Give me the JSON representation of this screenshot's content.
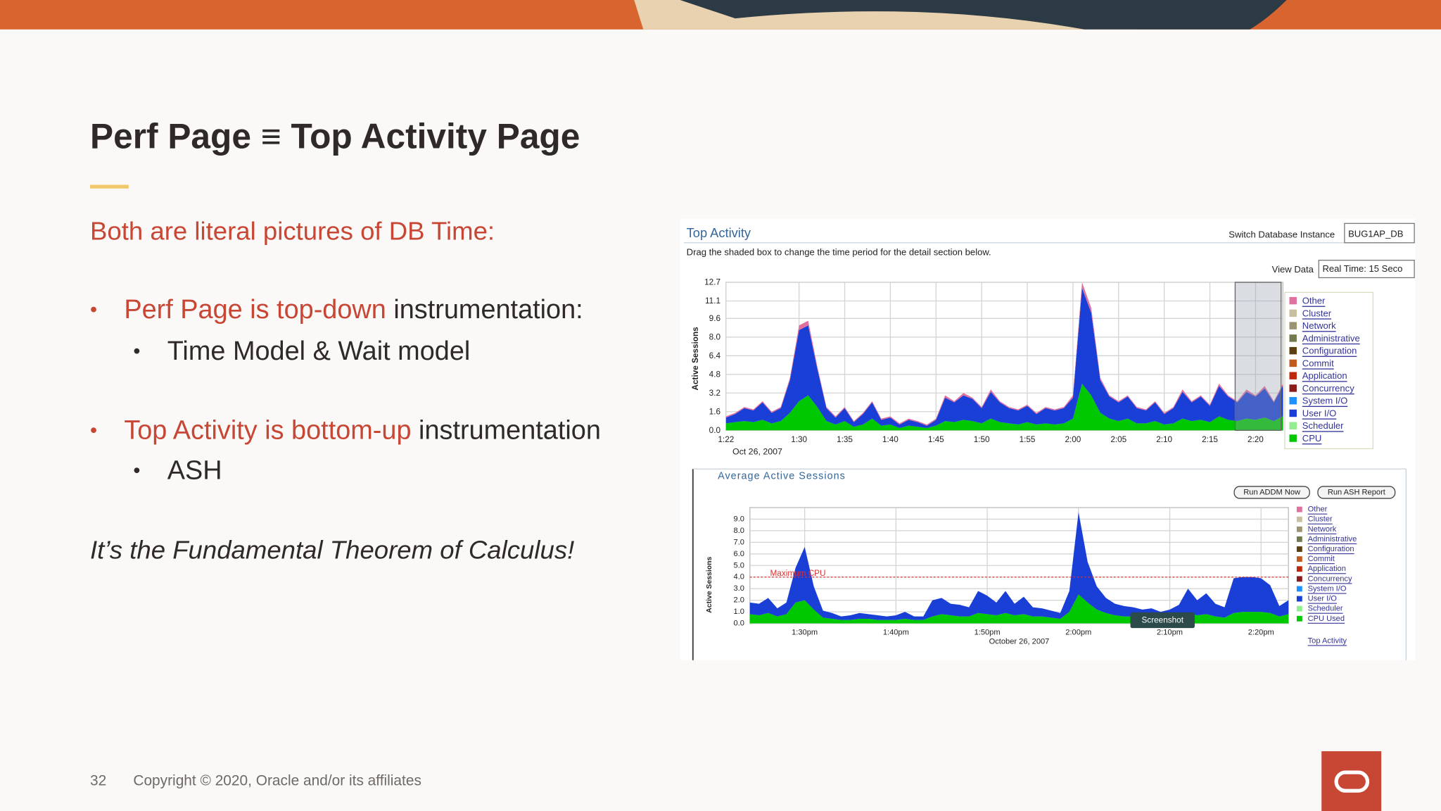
{
  "slide": {
    "title": "Perf Page ≡ Top Activity Page",
    "subtitle": "Both are literal pictures of DB Time:",
    "bullets": [
      {
        "highlight": "Perf Page is top-down",
        "text": " instrumentation:",
        "sub": "Time Model & Wait model"
      },
      {
        "highlight": "Top Activity is bottom-up",
        "text": " instrumentation",
        "sub": "ASH"
      }
    ],
    "closing": "It’s the Fundamental Theorem of Calculus!",
    "page_number": "32",
    "copyright": "Copyright © 2020, Oracle and/or its affiliates"
  },
  "screenshot": {
    "instruction": "Drag the shaded box to change the time period for the detail section below.",
    "instance_label": "Switch Database Instance",
    "instance_value": "BUG1AP_DB",
    "view_data_label": "View Data",
    "view_data_value": "Real Time: 15 Seco",
    "buttons": [
      "Run ADDM Now",
      "Run ASH Report"
    ],
    "link": "Top Activity",
    "tooltip": "Screenshot"
  },
  "chart_data": [
    {
      "type": "area",
      "title": "Top Activity",
      "y_label": "Active Sessions",
      "x_sublabel": "Oct 26, 2007",
      "stacked": true,
      "grid": true,
      "categories": [
        "1:22",
        null,
        null,
        null,
        null,
        null,
        null,
        null,
        "1:30",
        null,
        null,
        null,
        null,
        "1:35",
        null,
        null,
        null,
        null,
        "1:40",
        null,
        null,
        null,
        null,
        "1:45",
        null,
        null,
        null,
        null,
        "1:50",
        null,
        null,
        null,
        null,
        "1:55",
        null,
        null,
        null,
        null,
        "2:00",
        null,
        null,
        null,
        null,
        "2:05",
        null,
        null,
        null,
        null,
        "2:10",
        null,
        null,
        null,
        null,
        "2:15",
        null,
        null,
        null,
        null,
        "2:20",
        null,
        null,
        null
      ],
      "ylim": [
        0,
        12.7
      ],
      "yticks": [
        {
          "value": 0,
          "label": "0.0"
        },
        1.6,
        3.2,
        4.8,
        6.4,
        {
          "value": 8,
          "label": "8.0"
        },
        9.6,
        11.1,
        12.7
      ],
      "series": [
        {
          "color": "#00c800",
          "values": [
            0.6,
            0.7,
            0.8,
            0.7,
            0.9,
            0.6,
            0.8,
            1.5,
            2.5,
            3.0,
            2.0,
            0.8,
            0.5,
            0.8,
            0.3,
            0.5,
            1.0,
            0.4,
            0.5,
            0.2,
            0.4,
            0.3,
            0.2,
            0.4,
            0.8,
            0.7,
            0.9,
            0.8,
            0.6,
            1.0,
            0.7,
            0.6,
            0.5,
            0.7,
            0.5,
            0.6,
            0.5,
            0.6,
            1.0,
            4.0,
            3.0,
            1.5,
            1.0,
            0.8,
            1.0,
            0.6,
            0.6,
            0.8,
            0.5,
            0.6,
            1.0,
            0.8,
            0.9,
            0.7,
            1.2,
            0.9,
            0.8,
            1.0,
            0.9,
            1.1,
            0.8,
            1.2
          ]
        },
        {
          "color": "#1a3fd6",
          "values": [
            0.5,
            0.7,
            1.1,
            1.0,
            1.5,
            0.9,
            1.1,
            2.8,
            6.1,
            6.0,
            3.3,
            1.1,
            0.6,
            1.1,
            0.4,
            0.9,
            1.4,
            0.5,
            0.6,
            0.3,
            0.5,
            0.4,
            0.2,
            0.5,
            2.0,
            1.7,
            2.1,
            1.9,
            1.3,
            2.3,
            1.7,
            1.3,
            1.2,
            1.4,
            0.9,
            1.3,
            1.2,
            1.3,
            1.8,
            8.2,
            7.1,
            2.8,
            1.9,
            1.6,
            1.9,
            1.3,
            1.1,
            1.6,
            0.9,
            1.3,
            2.3,
            1.6,
            2.0,
            1.4,
            2.6,
            2.0,
            1.6,
            2.3,
            2.0,
            2.5,
            1.6,
            2.6
          ]
        },
        {
          "color": "#e0709e",
          "values": [
            0.1,
            0.1,
            0.1,
            0.1,
            0.1,
            0.1,
            0.1,
            0.2,
            0.4,
            0.4,
            0.2,
            0.1,
            0.1,
            0.1,
            0.1,
            0.1,
            0.1,
            0.1,
            0.1,
            0.1,
            0.1,
            0.1,
            0.1,
            0.1,
            0.2,
            0.1,
            0.2,
            0.1,
            0.1,
            0.2,
            0.1,
            0.1,
            0.1,
            0.1,
            0.1,
            0.1,
            0.1,
            0.1,
            0.2,
            0.5,
            0.4,
            0.2,
            0.1,
            0.1,
            0.1,
            0.1,
            0.1,
            0.1,
            0.1,
            0.1,
            0.2,
            0.1,
            0.1,
            0.1,
            0.2,
            0.1,
            0.1,
            0.2,
            0.1,
            0.2,
            0.1,
            0.2
          ]
        }
      ],
      "legend": [
        {
          "name": "Other",
          "color": "#e0709e"
        },
        {
          "name": "Cluster",
          "color": "#c8bfa0"
        },
        {
          "name": "Network",
          "color": "#9c9371"
        },
        {
          "name": "Administrative",
          "color": "#6f7a4d"
        },
        {
          "name": "Configuration",
          "color": "#5c3f10"
        },
        {
          "name": "Commit",
          "color": "#c25a1e"
        },
        {
          "name": "Application",
          "color": "#c0280c"
        },
        {
          "name": "Concurrency",
          "color": "#8b1a1a"
        },
        {
          "name": "System I/O",
          "color": "#1e90ff"
        },
        {
          "name": "User I/O",
          "color": "#1a3fd6"
        },
        {
          "name": "Scheduler",
          "color": "#90ee90"
        },
        {
          "name": "CPU",
          "color": "#00c800"
        }
      ]
    },
    {
      "type": "area",
      "title": "Average Active Sessions",
      "y_label": "Active Sessions",
      "x_label": "October 26, 2007",
      "stacked": true,
      "grid": true,
      "categories": [
        null,
        null,
        null,
        null,
        null,
        null,
        "1:30pm",
        null,
        null,
        null,
        null,
        null,
        null,
        null,
        null,
        null,
        "1:40pm",
        null,
        null,
        null,
        null,
        null,
        null,
        null,
        null,
        null,
        "1:50pm",
        null,
        null,
        null,
        null,
        null,
        null,
        null,
        null,
        null,
        "2:00pm",
        null,
        null,
        null,
        null,
        null,
        null,
        null,
        null,
        null,
        "2:10pm",
        null,
        null,
        null,
        null,
        null,
        null,
        null,
        null,
        null,
        "2:20pm",
        null,
        null,
        null
      ],
      "ylim": [
        0,
        10
      ],
      "yticks": [
        {
          "value": 0,
          "label": "0.0"
        },
        {
          "value": 1,
          "label": "1.0"
        },
        {
          "value": 2,
          "label": "2.0"
        },
        {
          "value": 3,
          "label": "3.0"
        },
        {
          "value": 4,
          "label": "4.0"
        },
        {
          "value": 5,
          "label": "5.0"
        },
        {
          "value": 6,
          "label": "6.0"
        },
        {
          "value": 7,
          "label": "7.0"
        },
        {
          "value": 8,
          "label": "8.0"
        },
        {
          "value": 9,
          "label": "9.0"
        }
      ],
      "reference_line": {
        "value": 4,
        "label": "Maximum CPU",
        "color": "#e03030"
      },
      "series": [
        {
          "color": "#00c800",
          "values": [
            0.8,
            0.7,
            0.9,
            0.6,
            0.8,
            1.8,
            2.0,
            1.2,
            0.5,
            0.4,
            0.3,
            0.3,
            0.4,
            0.4,
            0.3,
            0.3,
            0.3,
            0.4,
            0.3,
            0.3,
            0.6,
            0.8,
            0.7,
            0.6,
            0.6,
            0.9,
            0.8,
            0.7,
            0.9,
            0.7,
            0.8,
            0.6,
            0.6,
            0.5,
            0.4,
            1.0,
            2.5,
            1.8,
            1.2,
            0.9,
            0.7,
            0.6,
            0.6,
            0.5,
            0.5,
            0.4,
            0.5,
            0.6,
            0.9,
            0.7,
            0.8,
            0.6,
            0.5,
            0.9,
            1.0,
            1.0,
            1.0,
            0.9,
            0.6,
            0.8
          ]
        },
        {
          "color": "#1a3fd6",
          "values": [
            1.0,
            1.0,
            1.3,
            0.7,
            1.0,
            3.0,
            4.6,
            2.0,
            0.6,
            0.5,
            0.3,
            0.4,
            0.5,
            0.4,
            0.4,
            0.3,
            0.4,
            0.6,
            0.3,
            0.3,
            1.4,
            1.4,
            1.0,
            1.0,
            0.8,
            1.9,
            1.6,
            1.1,
            1.9,
            1.0,
            1.5,
            0.8,
            0.7,
            0.6,
            0.5,
            1.8,
            7.1,
            3.5,
            2.0,
            1.3,
            1.0,
            0.9,
            0.8,
            0.7,
            0.8,
            0.6,
            0.7,
            1.0,
            2.1,
            1.3,
            1.8,
            1.1,
            0.9,
            3.0,
            3.0,
            3.0,
            2.9,
            2.4,
            0.9,
            1.2
          ]
        }
      ],
      "legend": [
        {
          "name": "Other",
          "color": "#e0709e"
        },
        {
          "name": "Cluster",
          "color": "#c8bfa0"
        },
        {
          "name": "Network",
          "color": "#9c9371"
        },
        {
          "name": "Administrative",
          "color": "#6f7a4d"
        },
        {
          "name": "Configuration",
          "color": "#5c3f10"
        },
        {
          "name": "Commit",
          "color": "#c25a1e"
        },
        {
          "name": "Application",
          "color": "#c0280c"
        },
        {
          "name": "Concurrency",
          "color": "#8b1a1a"
        },
        {
          "name": "System I/O",
          "color": "#1e90ff"
        },
        {
          "name": "User I/O",
          "color": "#1a3fd6"
        },
        {
          "name": "Scheduler",
          "color": "#90ee90"
        },
        {
          "name": "CPU Used",
          "color": "#00c800"
        }
      ]
    }
  ]
}
